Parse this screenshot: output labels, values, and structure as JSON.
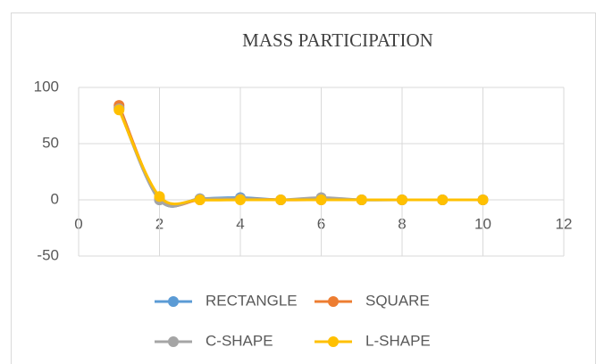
{
  "chart_data": {
    "type": "line",
    "title": "MASS PARTICIPATION",
    "x": [
      1,
      2,
      3,
      4,
      5,
      6,
      7,
      8,
      9,
      10
    ],
    "series": [
      {
        "name": "RECTANGLE",
        "color": "#5b9bd5",
        "values": [
          82,
          0,
          1,
          2,
          0,
          1,
          0,
          0,
          0,
          0
        ]
      },
      {
        "name": "SQUARE",
        "color": "#ed7d31",
        "values": [
          84,
          1,
          0,
          1,
          0,
          0,
          0,
          0,
          0,
          0
        ]
      },
      {
        "name": "C-SHAPE",
        "color": "#a5a5a5",
        "values": [
          81,
          0,
          1,
          1,
          0,
          2,
          0,
          0,
          0,
          0
        ]
      },
      {
        "name": "L-SHAPE",
        "color": "#ffc000",
        "values": [
          80,
          3,
          0,
          0,
          0,
          0,
          0,
          0,
          0,
          0
        ]
      }
    ],
    "xlim": [
      0,
      12
    ],
    "xticks": [
      0,
      2,
      4,
      6,
      8,
      10,
      12
    ],
    "ylim": [
      -50,
      100
    ],
    "yticks": [
      -50,
      0,
      50,
      100
    ],
    "grid": true,
    "smooth": true,
    "legend": "bottom"
  }
}
